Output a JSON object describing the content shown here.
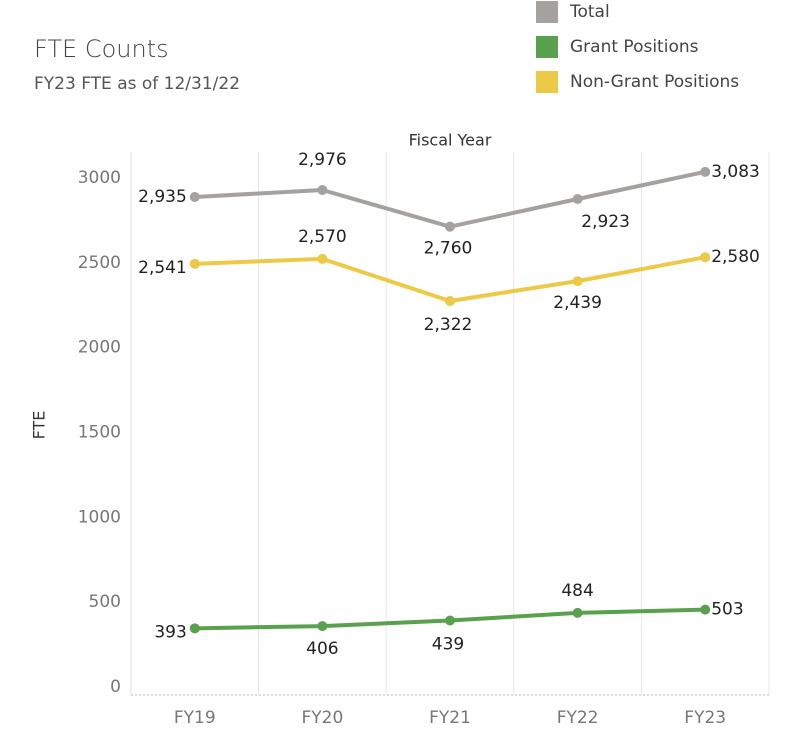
{
  "chart_data": {
    "type": "line",
    "title": "FTE Counts",
    "subtitle": "FY23 FTE as of 12/31/22",
    "x_axis_label": "Fiscal Year",
    "y_axis_label": "FTE",
    "categories": [
      "FY19",
      "FY20",
      "FY21",
      "FY22",
      "FY23"
    ],
    "series": [
      {
        "name": "Total",
        "color": "#a5a19e",
        "values": [
          2935,
          2976,
          2760,
          2923,
          3083
        ],
        "value_labels": [
          "2,935",
          "2,976",
          "2,760",
          "2,923",
          "3,083"
        ]
      },
      {
        "name": "Grant Positions",
        "color": "#59a14f",
        "values": [
          393,
          406,
          439,
          484,
          503
        ],
        "value_labels": [
          "393",
          "406",
          "439",
          "484",
          "503"
        ]
      },
      {
        "name": "Non-Grant Positions",
        "color": "#edc948",
        "values": [
          2541,
          2570,
          2322,
          2439,
          2580
        ],
        "value_labels": [
          "2,541",
          "2,570",
          "2,322",
          "2,439",
          "2,580"
        ]
      }
    ],
    "ylim": [
      0,
      3200
    ],
    "yticks": [
      0,
      500,
      1000,
      1500,
      2000,
      2500,
      3000
    ],
    "grid": false
  }
}
